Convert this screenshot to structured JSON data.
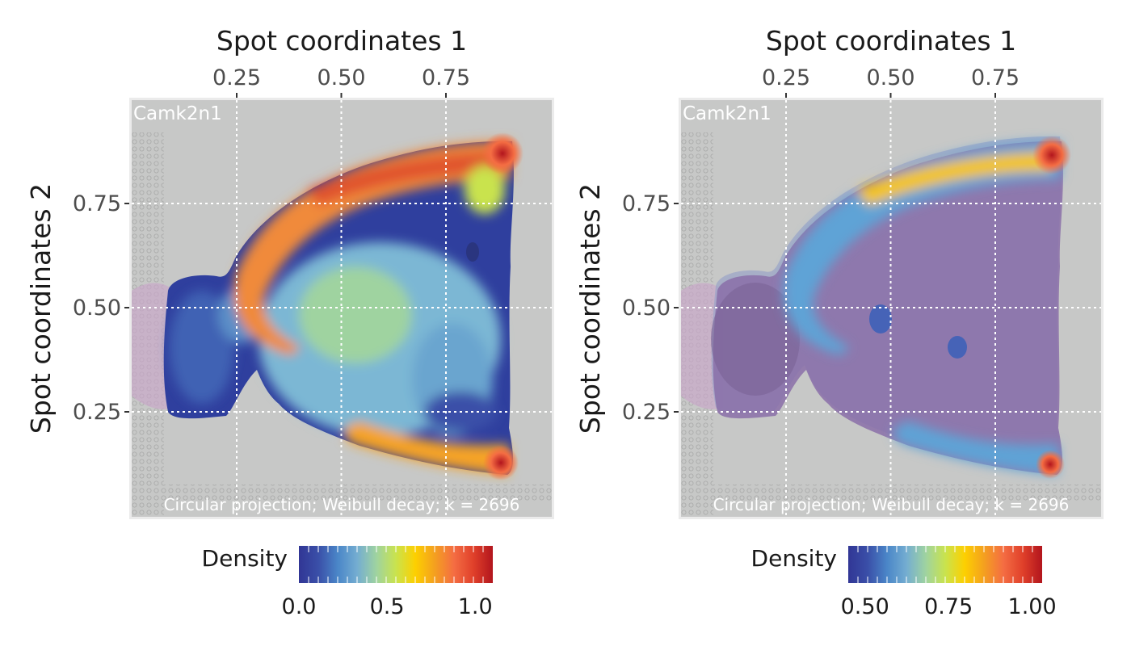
{
  "colors": {
    "panel_background": "#c7c8c7",
    "panel_border": "#ebebeb",
    "grid": "#ffffff",
    "tissue_purple": "#8a6fa8",
    "gradient": [
      "#313695",
      "#3a4fa8",
      "#4a86c8",
      "#74add1",
      "#9fd3a0",
      "#c9e34e",
      "#fdd000",
      "#f4a01f",
      "#f46d43",
      "#e0402a",
      "#b2151d"
    ]
  },
  "chart_data": [
    {
      "type": "heatmap",
      "title": "",
      "xlabel": "Spot coordinates 1",
      "ylabel": "Spot coordinates 2",
      "x_axis_position": "top",
      "xlim": [
        0,
        1
      ],
      "ylim": [
        0,
        1
      ],
      "x_ticks": [
        0.25,
        0.5,
        0.75
      ],
      "x_tick_labels": [
        "0.25",
        "0.50",
        "0.75"
      ],
      "y_ticks": [
        0.25,
        0.5,
        0.75
      ],
      "y_tick_labels": [
        "0.25",
        "0.50",
        "0.75"
      ],
      "grid": true,
      "gene": "Camk2n1",
      "caption": "Circular projection; Weibull decay; k = 2696",
      "legend": {
        "title": "Density",
        "placement": "bottom",
        "range": [
          0.0,
          1.1
        ],
        "ticks": [
          0.0,
          0.5,
          1.0
        ],
        "tick_labels": [
          "0.0",
          "0.5",
          "1.0"
        ]
      },
      "density_regions": [
        {
          "region": "outer rim (dorsal arc)",
          "density": 0.85
        },
        {
          "region": "ventral rim",
          "density": 0.75
        },
        {
          "region": "top-right corner",
          "density": 1.05
        },
        {
          "region": "bottom-right corner",
          "density": 1.05
        },
        {
          "region": "central tissue",
          "density": 0.35
        },
        {
          "region": "left stem",
          "density": 0.1
        }
      ]
    },
    {
      "type": "heatmap",
      "title": "",
      "xlabel": "Spot coordinates 1",
      "ylabel": "Spot coordinates 2",
      "x_axis_position": "top",
      "xlim": [
        0,
        1
      ],
      "ylim": [
        0,
        1
      ],
      "x_ticks": [
        0.25,
        0.5,
        0.75
      ],
      "x_tick_labels": [
        "0.25",
        "0.50",
        "0.75"
      ],
      "y_ticks": [
        0.25,
        0.5,
        0.75
      ],
      "y_tick_labels": [
        "0.25",
        "0.50",
        "0.75"
      ],
      "grid": true,
      "gene": "Camk2n1",
      "caption": "Circular projection; Weibull decay; k = 2696",
      "legend": {
        "title": "Density",
        "placement": "bottom",
        "range": [
          0.45,
          1.03
        ],
        "ticks": [
          0.5,
          0.75,
          1.0
        ],
        "tick_labels": [
          "0.50",
          "0.75",
          "1.00"
        ]
      },
      "density_regions": [
        {
          "region": "outer rim (dorsal arc)",
          "density": 0.7
        },
        {
          "region": "ventral rim",
          "density": 0.62
        },
        {
          "region": "top-right corner",
          "density": 1.0
        },
        {
          "region": "bottom-right corner",
          "density": 1.0
        }
      ]
    }
  ]
}
